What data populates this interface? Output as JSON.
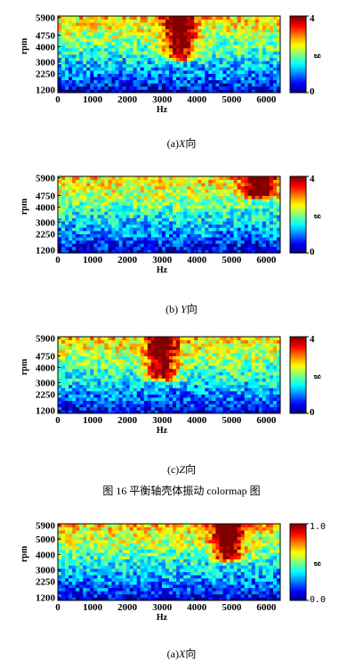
{
  "figure_title": "图 16  平衡轴壳体振动 colormap 图",
  "captions": [
    {
      "prefix": "(a)",
      "axis": "X",
      "suffix": "向"
    },
    {
      "prefix": "(b) ",
      "axis": "Y",
      "suffix": "向"
    },
    {
      "prefix": "(c)",
      "axis": "Z",
      "suffix": "向"
    },
    {
      "prefix": "(a)",
      "axis": "X",
      "suffix": "向"
    }
  ],
  "colors": {
    "low": "#00008f",
    "mid": "#00ff80",
    "high": "#ff0000"
  },
  "chart_data": [
    {
      "type": "heatmap",
      "xlabel": "Hz",
      "ylabel": "rpm",
      "colorbar_label": "g",
      "x_ticks": [
        0,
        1000,
        2000,
        3000,
        4000,
        5000,
        6000
      ],
      "y_ticks": [
        1200,
        2250,
        3000,
        4000,
        4750,
        5900
      ],
      "colorbar_ticks": [
        "0",
        "4"
      ],
      "xlim": [
        0,
        6400
      ],
      "ylim": [
        1000,
        6000
      ],
      "clim": [
        0,
        4
      ],
      "hotspots": [
        {
          "x": 3500,
          "y_from": 3000,
          "y_to": 6000,
          "level": 4
        }
      ]
    },
    {
      "type": "heatmap",
      "xlabel": "Hz",
      "ylabel": "rpm",
      "colorbar_label": "g",
      "x_ticks": [
        0,
        1000,
        2000,
        3000,
        4000,
        5000,
        6000
      ],
      "y_ticks": [
        1200,
        2250,
        3000,
        4000,
        4750,
        5900
      ],
      "colorbar_ticks": [
        "0",
        "4"
      ],
      "xlim": [
        0,
        6400
      ],
      "ylim": [
        1000,
        6000
      ],
      "clim": [
        0,
        4
      ],
      "hotspots": [
        {
          "x": 5800,
          "y_from": 4500,
          "y_to": 6000,
          "level": 4
        }
      ]
    },
    {
      "type": "heatmap",
      "xlabel": "Hz",
      "ylabel": "rpm",
      "colorbar_label": "g",
      "x_ticks": [
        0,
        1000,
        2000,
        3000,
        4000,
        5000,
        6000
      ],
      "y_ticks": [
        1200,
        2250,
        3000,
        4000,
        4750,
        5900
      ],
      "colorbar_ticks": [
        "0",
        "4"
      ],
      "xlim": [
        0,
        6400
      ],
      "ylim": [
        1000,
        6000
      ],
      "clim": [
        0,
        4
      ],
      "hotspots": [
        {
          "x": 3000,
          "y_from": 3000,
          "y_to": 6000,
          "level": 4
        }
      ]
    },
    {
      "type": "heatmap",
      "xlabel": "Hz",
      "ylabel": "rpm",
      "colorbar_label": "g",
      "x_ticks": [
        0,
        1000,
        2000,
        3000,
        4000,
        5000,
        6000
      ],
      "y_ticks": [
        1200,
        2250,
        3000,
        4000,
        5000,
        5900
      ],
      "colorbar_ticks": [
        "0.0",
        "1.0"
      ],
      "xlim": [
        0,
        6400
      ],
      "ylim": [
        1000,
        6000
      ],
      "clim": [
        0,
        1
      ],
      "hotspots": [
        {
          "x": 4900,
          "y_from": 3500,
          "y_to": 6000,
          "level": 1
        }
      ]
    }
  ]
}
